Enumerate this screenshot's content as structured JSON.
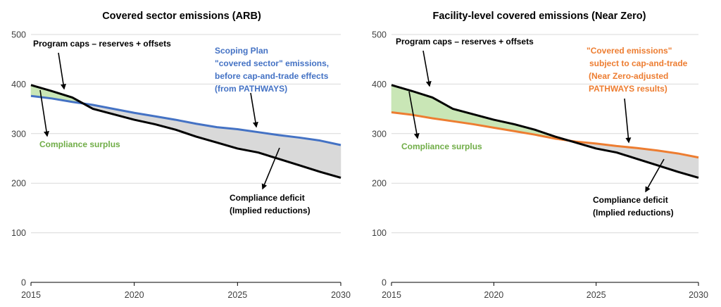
{
  "chart_data": [
    {
      "type": "line",
      "title": "Covered sector emissions (ARB)",
      "xlim": [
        2015,
        2030
      ],
      "ylim": [
        0,
        500
      ],
      "xticks": [
        "2015",
        "2020",
        "2025",
        "2030"
      ],
      "yticks": [
        "0",
        "100",
        "200",
        "300",
        "400",
        "500"
      ],
      "grid": true,
      "series": [
        {
          "name": "Program caps – reserves + offsets",
          "color": "#000000",
          "x": [
            2015,
            2016,
            2017,
            2018,
            2019,
            2020,
            2021,
            2022,
            2023,
            2024,
            2025,
            2026,
            2027,
            2028,
            2029,
            2030
          ],
          "y": [
            398,
            386,
            373,
            350,
            339,
            328,
            319,
            308,
            294,
            282,
            270,
            262,
            249,
            236,
            223,
            211
          ]
        },
        {
          "name": "Scoping Plan \"covered sector\" emissions, before cap-and-trade effects (from PATHWAYS)",
          "color": "#4472C4",
          "x": [
            2015,
            2016,
            2017,
            2018,
            2019,
            2020,
            2021,
            2022,
            2023,
            2024,
            2025,
            2026,
            2027,
            2028,
            2029,
            2030
          ],
          "y": [
            376,
            371,
            364,
            358,
            350,
            342,
            335,
            328,
            320,
            313,
            309,
            303,
            297,
            292,
            286,
            277
          ]
        }
      ],
      "annotations": [
        {
          "text": "Program caps – reserves + offsets",
          "color": "#000000"
        },
        {
          "text": "Scoping Plan",
          "color": "#4472C4"
        },
        {
          "text": "\"covered sector\" emissions,",
          "color": "#4472C4"
        },
        {
          "text": "before cap-and-trade effects",
          "color": "#4472C4"
        },
        {
          "text": "(from PATHWAYS)",
          "color": "#4472C4"
        },
        {
          "text": "Compliance surplus",
          "color": "#70AD47"
        },
        {
          "text": "Compliance deficit",
          "color": "#000000"
        },
        {
          "text": "(Implied reductions)",
          "color": "#000000"
        }
      ]
    },
    {
      "type": "line",
      "title": "Facility-level covered emissions (Near Zero)",
      "xlim": [
        2015,
        2030
      ],
      "ylim": [
        0,
        500
      ],
      "xticks": [
        "2015",
        "2020",
        "2025",
        "2030"
      ],
      "yticks": [
        "0",
        "100",
        "200",
        "300",
        "400",
        "500"
      ],
      "grid": true,
      "series": [
        {
          "name": "Program caps – reserves + offsets",
          "color": "#000000",
          "x": [
            2015,
            2016,
            2017,
            2018,
            2019,
            2020,
            2021,
            2022,
            2023,
            2024,
            2025,
            2026,
            2027,
            2028,
            2029,
            2030
          ],
          "y": [
            398,
            386,
            373,
            350,
            339,
            328,
            319,
            308,
            294,
            282,
            270,
            262,
            249,
            236,
            223,
            211
          ]
        },
        {
          "name": "\"Covered emissions\" subject to cap-and-trade (Near Zero-adjusted PATHWAYS results)",
          "color": "#ED7D31",
          "x": [
            2015,
            2016,
            2017,
            2018,
            2019,
            2020,
            2021,
            2022,
            2023,
            2024,
            2025,
            2026,
            2027,
            2028,
            2029,
            2030
          ],
          "y": [
            343,
            338,
            331,
            325,
            319,
            312,
            305,
            298,
            290,
            284,
            280,
            275,
            271,
            266,
            260,
            252
          ]
        }
      ],
      "annotations": [
        {
          "text": "Program caps – reserves + offsets",
          "color": "#000000"
        },
        {
          "text": "\"Covered emissions\"",
          "color": "#ED7D31"
        },
        {
          "text": "subject to cap-and-trade",
          "color": "#ED7D31"
        },
        {
          "text": "(Near Zero-adjusted",
          "color": "#ED7D31"
        },
        {
          "text": "PATHWAYS results)",
          "color": "#ED7D31"
        },
        {
          "text": "Compliance surplus",
          "color": "#70AD47"
        },
        {
          "text": "Compliance deficit",
          "color": "#000000"
        },
        {
          "text": "(Implied reductions)",
          "color": "#000000"
        }
      ]
    }
  ],
  "colors": {
    "surplus_fill": "#C9E6B6",
    "deficit_fill": "#D9D9D9",
    "gridline": "#D9D9D9",
    "axis": "#000000"
  }
}
